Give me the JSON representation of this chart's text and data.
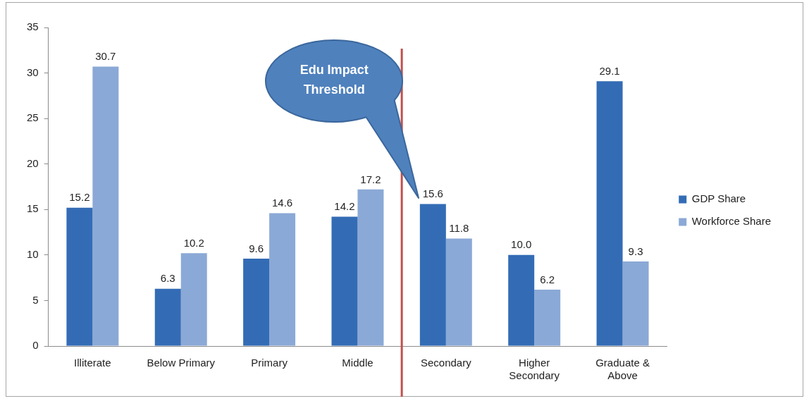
{
  "chart_data": {
    "type": "bar",
    "categories": [
      "Illiterate",
      "Below Primary",
      "Primary",
      "Middle",
      "Secondary",
      "Higher Secondary",
      "Graduate & Above"
    ],
    "series": [
      {
        "name": "GDP Share",
        "color": "#336cb5",
        "values": [
          15.2,
          6.3,
          9.6,
          14.2,
          15.6,
          10.0,
          29.1
        ],
        "value_labels": [
          "15.2",
          "6.3",
          "9.6",
          "14.2",
          "15.6",
          "10.0",
          "29.1"
        ]
      },
      {
        "name": "Workforce Share",
        "color": "#8ba9d6",
        "values": [
          30.7,
          10.2,
          14.6,
          17.2,
          11.8,
          6.2,
          9.3
        ],
        "value_labels": [
          "30.7",
          "10.2",
          "14.6",
          "17.2",
          "11.8",
          "6.2",
          "9.3"
        ]
      }
    ],
    "ylim": [
      0,
      35
    ],
    "yticks": [
      0,
      5,
      10,
      15,
      20,
      25,
      30,
      35
    ],
    "grid": false,
    "legend": "right",
    "ref_lines": [
      {
        "axis": "x",
        "value": "Secondary",
        "label": "Edu Impact Threshold",
        "color": "#c0504d"
      }
    ]
  }
}
